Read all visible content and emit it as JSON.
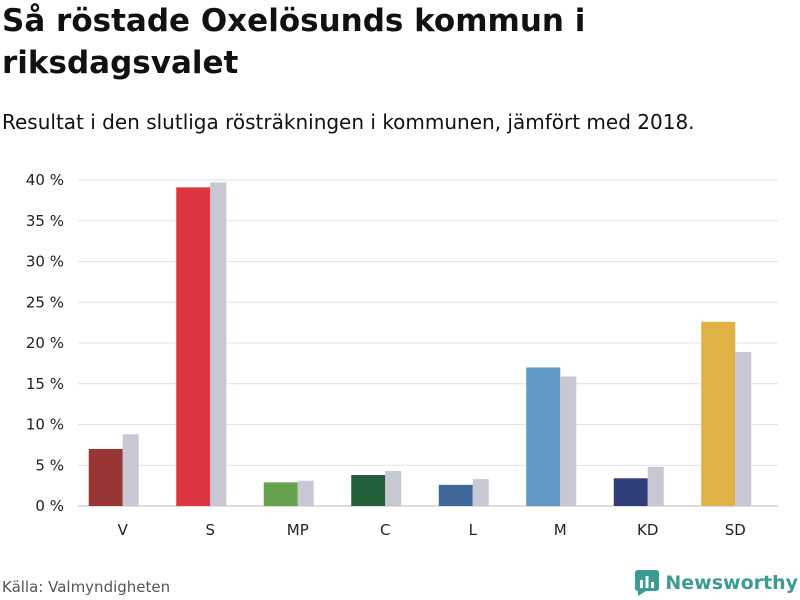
{
  "title": "Så röstade Oxelösunds kommun i riksdagsvalet",
  "subtitle": "Resultat i den slutliga rösträkningen i kommunen, jämfört med 2018.",
  "source": "Källa: Valmyndigheten",
  "brand": {
    "name": "Newsworthy",
    "icon": "newsworthy-logo-icon",
    "color": "#3b9c94"
  },
  "chart_data": {
    "type": "bar",
    "categories": [
      "V",
      "S",
      "MP",
      "C",
      "L",
      "M",
      "KD",
      "SD"
    ],
    "series": [
      {
        "values": [
          7.0,
          39.1,
          2.9,
          3.8,
          2.6,
          17.0,
          3.4,
          22.6
        ],
        "colors": [
          "#973633",
          "#dc3640",
          "#65a04d",
          "#225e37",
          "#3e6797",
          "#6098c6",
          "#2f3d78",
          "#e0b245"
        ]
      },
      {
        "values": [
          8.8,
          39.7,
          3.1,
          4.3,
          3.3,
          15.9,
          4.8,
          18.9
        ],
        "color": "#c8c8d4"
      }
    ],
    "yticks": [
      "0 %",
      "5 %",
      "10 %",
      "15 %",
      "20 %",
      "25 %",
      "30 %",
      "35 %",
      "40 %"
    ],
    "ylim": [
      0,
      40
    ],
    "grid": true
  }
}
